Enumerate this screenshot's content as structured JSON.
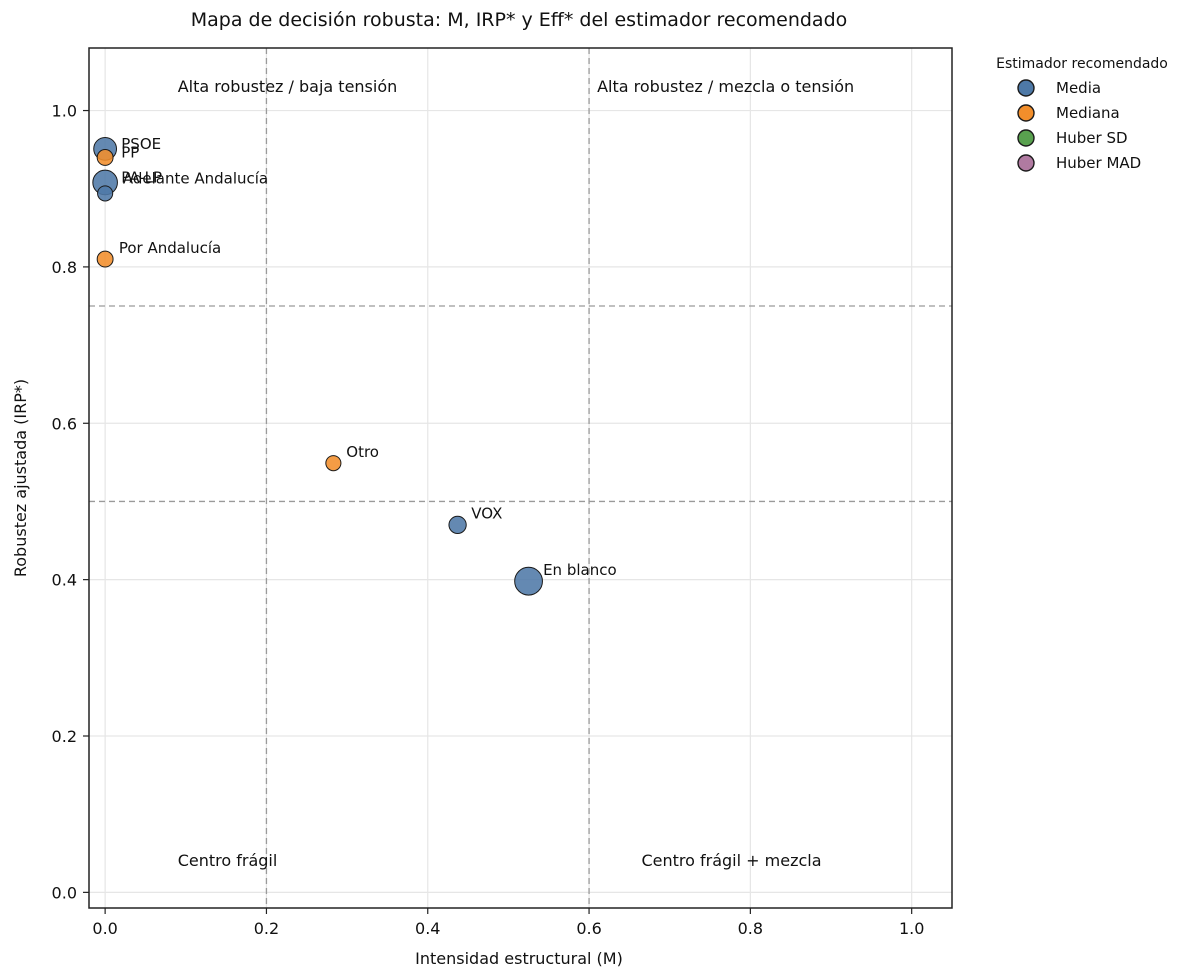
{
  "chart_data": {
    "type": "scatter",
    "title": "Mapa de decisión robusta: M, IRP* y Eff* del estimador recomendado",
    "xlabel": "Intensidad estructural (M)",
    "ylabel": "Robustez ajustada (IRP*)",
    "xlim": [
      -0.02,
      1.05
    ],
    "ylim": [
      -0.02,
      1.08
    ],
    "x_ticks": [
      0.0,
      0.2,
      0.4,
      0.6,
      0.8,
      1.0
    ],
    "x_tick_labels": [
      "0.0",
      "0.2",
      "0.4",
      "0.6",
      "0.8",
      "1.0"
    ],
    "y_ticks": [
      0.0,
      0.2,
      0.4,
      0.6,
      0.8,
      1.0
    ],
    "y_tick_labels": [
      "0.0",
      "0.2",
      "0.4",
      "0.6",
      "0.8",
      "1.0"
    ],
    "grid": true,
    "thresholds": {
      "x": [
        0.2,
        0.6
      ],
      "y": [
        0.5,
        0.75
      ]
    },
    "quadrant_labels": [
      {
        "text": "Alta robustez / baja tensión",
        "x": 0.09,
        "y": 1.03
      },
      {
        "text": "Alta robustez / mezcla o tensión",
        "x": 0.61,
        "y": 1.03
      },
      {
        "text": "Centro frágil",
        "x": 0.09,
        "y": 0.04
      },
      {
        "text": "Centro frágil + mezcla",
        "x": 0.665,
        "y": 0.04
      }
    ],
    "legend": {
      "title": "Estimador recomendado",
      "placement": "outside-top-right",
      "entries": [
        {
          "label": "Media",
          "color": "#4e79a7"
        },
        {
          "label": "Mediana",
          "color": "#f28e2b"
        },
        {
          "label": "Huber SD",
          "color": "#59a14f"
        },
        {
          "label": "Huber MAD",
          "color": "#b07aa1"
        }
      ]
    },
    "points": [
      {
        "label": "PSOE",
        "x": 0.0,
        "y": 0.951,
        "estimator": "Media",
        "size": 4.0,
        "label_dx": 0.02,
        "label_dy": 0.0
      },
      {
        "label": "PP",
        "x": 0.0,
        "y": 0.94,
        "estimator": "Mediana",
        "size": 1.6,
        "label_dx": 0.02,
        "label_dy": 0.0
      },
      {
        "label": "PA-LP",
        "x": 0.0,
        "y": 0.908,
        "estimator": "Media",
        "size": 4.8,
        "label_dx": 0.02,
        "label_dy": 0.0
      },
      {
        "label": "Adelante Andalucía",
        "x": 0.0,
        "y": 0.894,
        "estimator": "Media",
        "size": 1.4,
        "label_dx": 0.022,
        "label_dy": 0.013
      },
      {
        "label": "Por Andalucía",
        "x": 0.0,
        "y": 0.81,
        "estimator": "Mediana",
        "size": 1.6,
        "label_dx": 0.017,
        "label_dy": 0.008
      },
      {
        "label": "Otro",
        "x": 0.283,
        "y": 0.549,
        "estimator": "Mediana",
        "size": 1.4,
        "label_dx": 0.016,
        "label_dy": 0.008
      },
      {
        "label": "VOX",
        "x": 0.437,
        "y": 0.47,
        "estimator": "Media",
        "size": 2.0,
        "label_dx": 0.017,
        "label_dy": 0.008
      },
      {
        "label": "En blanco",
        "x": 0.525,
        "y": 0.398,
        "estimator": "Media",
        "size": 6.4,
        "label_dx": 0.018,
        "label_dy": 0.008
      }
    ]
  }
}
